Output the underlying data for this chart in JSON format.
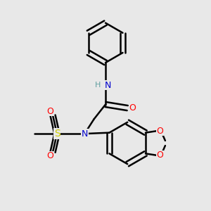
{
  "background_color": "#e8e8e8",
  "atom_colors": {
    "C": "#000000",
    "N": "#0000cc",
    "O": "#ff0000",
    "S": "#cccc00",
    "H": "#5f9ea0"
  },
  "bond_color": "#000000",
  "bond_width": 1.8,
  "figsize": [
    3.0,
    3.0
  ],
  "dpi": 100
}
